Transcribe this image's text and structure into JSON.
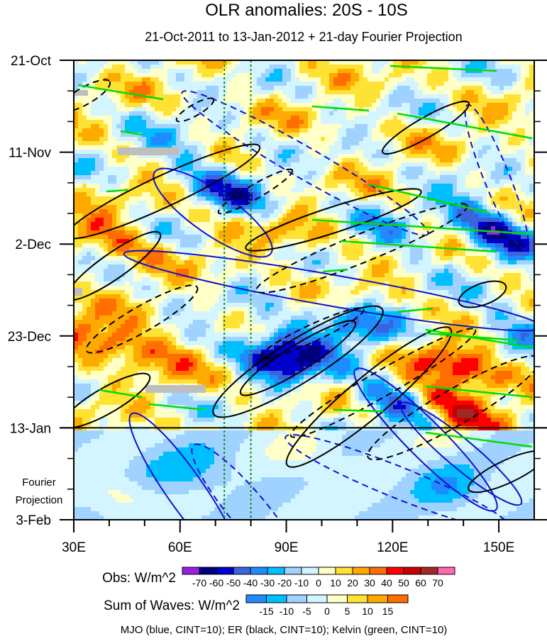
{
  "chart_data": {
    "type": "heatmap",
    "title": "OLR anomalies: 20S - 10S",
    "subtitle": "21-Oct-2011 to 13-Jan-2012 + 21-day Fourier Projection",
    "x_axis": {
      "range": [
        30,
        160
      ],
      "ticks": [
        30,
        60,
        90,
        120,
        150
      ],
      "tick_labels": [
        "30E",
        "60E",
        "90E",
        "120E",
        "150E"
      ],
      "minor_ticks": [
        40,
        50,
        70,
        80,
        100,
        110,
        130,
        140
      ]
    },
    "y_axis": {
      "range_days": [
        0,
        105
      ],
      "ticks_days": [
        0,
        21,
        42,
        63,
        84,
        105
      ],
      "tick_labels": [
        "21-Oct",
        "11-Nov",
        "2-Dec",
        "23-Dec",
        "13-Jan",
        "3-Feb"
      ],
      "minor_tick_interval_days": 7,
      "direction": "time increases downward"
    },
    "observation_end_day": 84,
    "projection_label": "Fourier Projection",
    "reference_lines_lon": [
      72.5,
      80
    ],
    "obs_colorbar": {
      "label": "Obs: W/m^2",
      "levels": [
        -70,
        -60,
        -50,
        -40,
        -30,
        -20,
        -10,
        0,
        10,
        20,
        30,
        40,
        50,
        60,
        70
      ],
      "colors": [
        "#9a1fe6",
        "#00007f",
        "#0000cd",
        "#3a64db",
        "#1e8cff",
        "#00bfff",
        "#a0d2ff",
        "#d2f5ff",
        "#ffffc8",
        "#ffe234",
        "#ffaa00",
        "#ff6e00",
        "#ff0000",
        "#c80000",
        "#a02828",
        "#ff69b4"
      ]
    },
    "waves_colorbar": {
      "label": "Sum of Waves: W/m^2",
      "levels": [
        -15,
        -10,
        -5,
        0,
        5,
        10,
        15
      ],
      "colors": [
        "#1e8cff",
        "#00bfff",
        "#a0d2ff",
        "#d2f5ff",
        "#ffffc8",
        "#ffe234",
        "#ffaa00",
        "#ff6e00"
      ]
    },
    "legend_note": "MJO (blue, CINT=10); ER (black, CINT=10); Kelvin (green, CINT=10)",
    "contour_colors": {
      "MJO": "#1010d0",
      "ER": "#000000",
      "Kelvin": "#00dd00"
    },
    "missing_color": "#bebebe"
  }
}
